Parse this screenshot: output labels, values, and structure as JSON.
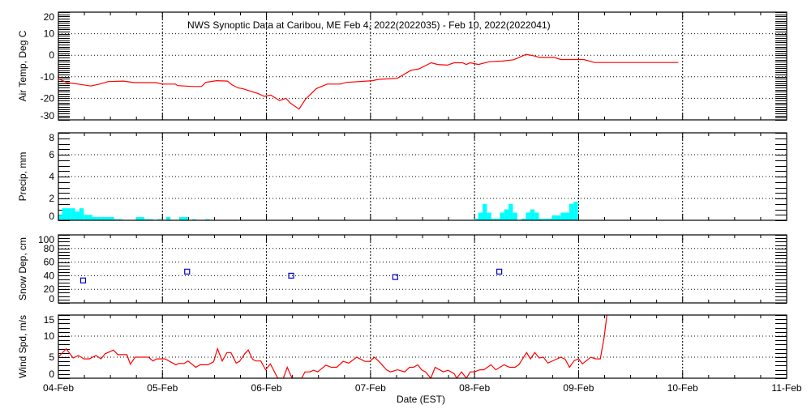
{
  "title": "NWS Synoptic Data at Caribou, ME   Feb  4, 2022(2022035) - Feb 10, 2022(2022041)",
  "xlabel": "Date (EST)",
  "x_tick_labels": [
    "04-Feb",
    "05-Feb",
    "06-Feb",
    "07-Feb",
    "08-Feb",
    "09-Feb",
    "10-Feb",
    "11-Feb"
  ],
  "x_unit": "hours since 04-Feb 00:00 EST",
  "x_range_hours": [
    0,
    168
  ],
  "colors": {
    "temp": "#ff0000",
    "precip": "#00ffff",
    "snow": "#0000cc",
    "wind": "#ff0000",
    "axis": "#000000"
  },
  "chart_data": [
    {
      "type": "line",
      "name": "temperature",
      "ylabel": "Air Temp, Deg C",
      "ylim": [
        -30,
        20
      ],
      "yticks": [
        "20",
        "10",
        "0",
        "-10",
        "-20",
        "-30"
      ],
      "ytick_values": [
        20,
        10,
        0,
        -10,
        -20,
        -30
      ],
      "grid": true,
      "points": [
        [
          0,
          -10.9
        ],
        [
          2,
          -12.7
        ],
        [
          4.5,
          -13.4
        ],
        [
          7.5,
          -14.3
        ],
        [
          9.5,
          -13.4
        ],
        [
          11.5,
          -12.2
        ],
        [
          15,
          -12
        ],
        [
          17.5,
          -12.7
        ],
        [
          22.5,
          -12.7
        ],
        [
          24,
          -13.4
        ],
        [
          27,
          -13.4
        ],
        [
          27.5,
          -14.1
        ],
        [
          31,
          -14.5
        ],
        [
          33,
          -14.5
        ],
        [
          34,
          -12.6
        ],
        [
          36.5,
          -11.8
        ],
        [
          39,
          -12
        ],
        [
          40,
          -13.7
        ],
        [
          41.5,
          -15.2
        ],
        [
          42.5,
          -15.5
        ],
        [
          44,
          -16.5
        ],
        [
          46,
          -17.7
        ],
        [
          47.5,
          -19.1
        ],
        [
          49,
          -18.5
        ],
        [
          51,
          -21
        ],
        [
          52.5,
          -20
        ],
        [
          53.5,
          -22.2
        ],
        [
          55.5,
          -25
        ],
        [
          57,
          -20.4
        ],
        [
          59.5,
          -15.5
        ],
        [
          62,
          -13.4
        ],
        [
          65,
          -13.4
        ],
        [
          66.5,
          -12.6
        ],
        [
          72.5,
          -11.8
        ],
        [
          73.8,
          -11.2
        ],
        [
          78.2,
          -10.7
        ],
        [
          81.3,
          -7
        ],
        [
          83.2,
          -6.3
        ],
        [
          86,
          -3.5
        ],
        [
          87.5,
          -4.3
        ],
        [
          89.7,
          -4.6
        ],
        [
          91.3,
          -3.5
        ],
        [
          93.2,
          -3.5
        ],
        [
          94.1,
          -4.3
        ],
        [
          95,
          -3.5
        ],
        [
          96.9,
          -4.3
        ],
        [
          99.4,
          -3
        ],
        [
          102.5,
          -2.7
        ],
        [
          105,
          -2.1
        ],
        [
          107.9,
          0.4
        ],
        [
          110,
          -0.4
        ],
        [
          110.9,
          -1
        ],
        [
          114.4,
          -1
        ],
        [
          115.9,
          -2
        ],
        [
          121.2,
          -2
        ],
        [
          122.5,
          -2.7
        ],
        [
          123.7,
          -3.4
        ],
        [
          143,
          -3.4
        ]
      ]
    },
    {
      "type": "bar",
      "name": "precipitation",
      "ylabel": "Precip, mm",
      "ylim": [
        0,
        8
      ],
      "yticks": [
        "8",
        "6",
        "4",
        "2",
        "0"
      ],
      "ytick_values": [
        8,
        6,
        4,
        2,
        0
      ],
      "grid": true,
      "hourly_bars": [
        [
          0,
          0.5
        ],
        [
          1,
          1.1
        ],
        [
          2,
          1.1
        ],
        [
          3,
          1.1
        ],
        [
          4,
          0.8
        ],
        [
          5,
          1.1
        ],
        [
          6,
          0.5
        ],
        [
          7,
          0.5
        ],
        [
          8,
          0.3
        ],
        [
          9,
          0.3
        ],
        [
          10,
          0.3
        ],
        [
          11,
          0.3
        ],
        [
          12,
          0.3
        ],
        [
          13,
          0.1
        ],
        [
          14,
          0.1
        ],
        [
          18,
          0.3
        ],
        [
          19,
          0.3
        ],
        [
          20,
          0.1
        ],
        [
          21,
          0.1
        ],
        [
          23,
          0.1
        ],
        [
          25,
          0.3
        ],
        [
          28,
          0.3
        ],
        [
          29,
          0.3
        ],
        [
          31,
          0.1
        ],
        [
          34,
          0.1
        ],
        [
          96,
          0.15
        ],
        [
          97,
          0.7
        ],
        [
          98,
          1.5
        ],
        [
          99,
          0.7
        ],
        [
          100,
          0.15
        ],
        [
          101,
          0.15
        ],
        [
          102,
          0.7
        ],
        [
          103,
          1.0
        ],
        [
          104,
          1.5
        ],
        [
          105,
          0.7
        ],
        [
          107,
          0.15
        ],
        [
          108,
          0.7
        ],
        [
          109,
          1.0
        ],
        [
          110,
          0.7
        ],
        [
          111,
          0.15
        ],
        [
          112,
          0.15
        ],
        [
          113,
          0.15
        ],
        [
          114,
          0.45
        ],
        [
          115,
          0.45
        ],
        [
          116,
          0.7
        ],
        [
          117,
          0.7
        ],
        [
          118,
          1.5
        ],
        [
          119,
          1.7
        ]
      ]
    },
    {
      "type": "scatter",
      "name": "snow_depth",
      "ylabel": "Snow Dep, cm",
      "ylim": [
        0,
        100
      ],
      "yticks": [
        "100",
        "80",
        "60",
        "40",
        "20",
        "0"
      ],
      "ytick_values": [
        100,
        80,
        60,
        40,
        20,
        0
      ],
      "grid": true,
      "points": [
        [
          5.7,
          33
        ],
        [
          29.7,
          46
        ],
        [
          53.7,
          40
        ],
        [
          77.7,
          38
        ],
        [
          101.7,
          46
        ]
      ]
    },
    {
      "type": "line",
      "name": "wind_speed",
      "ylabel": "Wind Spd, m/s",
      "ylim": [
        0,
        15
      ],
      "yticks": [
        "15",
        "10",
        "5",
        "0"
      ],
      "ytick_values": [
        15,
        10,
        5,
        0
      ],
      "grid": true,
      "points": [
        [
          0,
          5
        ],
        [
          1.8,
          7
        ],
        [
          3.4,
          4.8
        ],
        [
          4.6,
          5.4
        ],
        [
          5.9,
          4.6
        ],
        [
          7.1,
          4.6
        ],
        [
          8.7,
          5.4
        ],
        [
          9.8,
          4.6
        ],
        [
          10.8,
          5.8
        ],
        [
          12.7,
          6.7
        ],
        [
          13.7,
          5.6
        ],
        [
          15.8,
          5.6
        ],
        [
          16.6,
          3.3
        ],
        [
          17.7,
          5
        ],
        [
          20.8,
          5
        ],
        [
          21.8,
          4.1
        ],
        [
          22.7,
          4.6
        ],
        [
          24.6,
          4.6
        ],
        [
          27.1,
          3.2
        ],
        [
          27.7,
          3.5
        ],
        [
          29,
          3.5
        ],
        [
          29.9,
          4.1
        ],
        [
          31.7,
          2.6
        ],
        [
          32.7,
          3.2
        ],
        [
          34.5,
          3.2
        ],
        [
          35.8,
          3.9
        ],
        [
          36.7,
          7
        ],
        [
          37.8,
          4.1
        ],
        [
          38.9,
          6.1
        ],
        [
          39.8,
          6.1
        ],
        [
          41,
          3.6
        ],
        [
          41.8,
          4
        ],
        [
          43,
          5.8
        ],
        [
          43.8,
          6.7
        ],
        [
          44.8,
          4.5
        ],
        [
          45.5,
          4.1
        ],
        [
          46.7,
          4.1
        ],
        [
          47.8,
          2
        ],
        [
          48.9,
          3.4
        ],
        [
          50.6,
          0
        ],
        [
          51.9,
          0
        ],
        [
          52.8,
          2.6
        ],
        [
          53.9,
          0
        ],
        [
          56.1,
          0
        ],
        [
          56.9,
          1.5
        ],
        [
          58,
          1.5
        ],
        [
          58.9,
          1.9
        ],
        [
          59.8,
          1.5
        ],
        [
          61.7,
          3.1
        ],
        [
          63,
          2.6
        ],
        [
          64.2,
          2.6
        ],
        [
          65.7,
          4
        ],
        [
          67,
          3.6
        ],
        [
          68.8,
          5
        ],
        [
          70.7,
          4
        ],
        [
          71.8,
          4
        ],
        [
          72.9,
          5
        ],
        [
          74.1,
          3.8
        ],
        [
          75.7,
          2
        ],
        [
          76.6,
          1.5
        ],
        [
          78.2,
          2
        ],
        [
          79.9,
          1.5
        ],
        [
          81,
          2.6
        ],
        [
          81.9,
          2.6
        ],
        [
          82.9,
          3.2
        ],
        [
          83.8,
          2
        ],
        [
          84.7,
          1.5
        ],
        [
          85.9,
          0
        ],
        [
          86.9,
          2.6
        ],
        [
          88.8,
          1.5
        ],
        [
          89.9,
          1.9
        ],
        [
          91.3,
          1.1
        ],
        [
          91.9,
          0
        ],
        [
          93,
          1.5
        ],
        [
          94.1,
          0
        ],
        [
          95,
          1.5
        ],
        [
          96,
          1.5
        ],
        [
          97.2,
          2
        ],
        [
          98.1,
          2
        ],
        [
          99.8,
          3.2
        ],
        [
          100.9,
          2
        ],
        [
          102.8,
          3.2
        ],
        [
          104.1,
          2.6
        ],
        [
          105.3,
          2.6
        ],
        [
          106.2,
          3.2
        ],
        [
          108,
          6.1
        ],
        [
          108.9,
          4.6
        ],
        [
          109.9,
          6.1
        ],
        [
          110.9,
          4.8
        ],
        [
          111.9,
          5
        ],
        [
          112.9,
          3.6
        ],
        [
          115.9,
          5
        ],
        [
          116.9,
          4.5
        ],
        [
          117.9,
          2.6
        ],
        [
          119,
          4.2
        ],
        [
          120,
          4.6
        ],
        [
          120.9,
          3.4
        ],
        [
          122.8,
          5
        ],
        [
          124,
          4.6
        ],
        [
          125,
          4.6
        ],
        [
          125.9,
          9.8
        ],
        [
          126.5,
          14.8
        ],
        [
          126.7,
          16.7
        ]
      ]
    }
  ]
}
